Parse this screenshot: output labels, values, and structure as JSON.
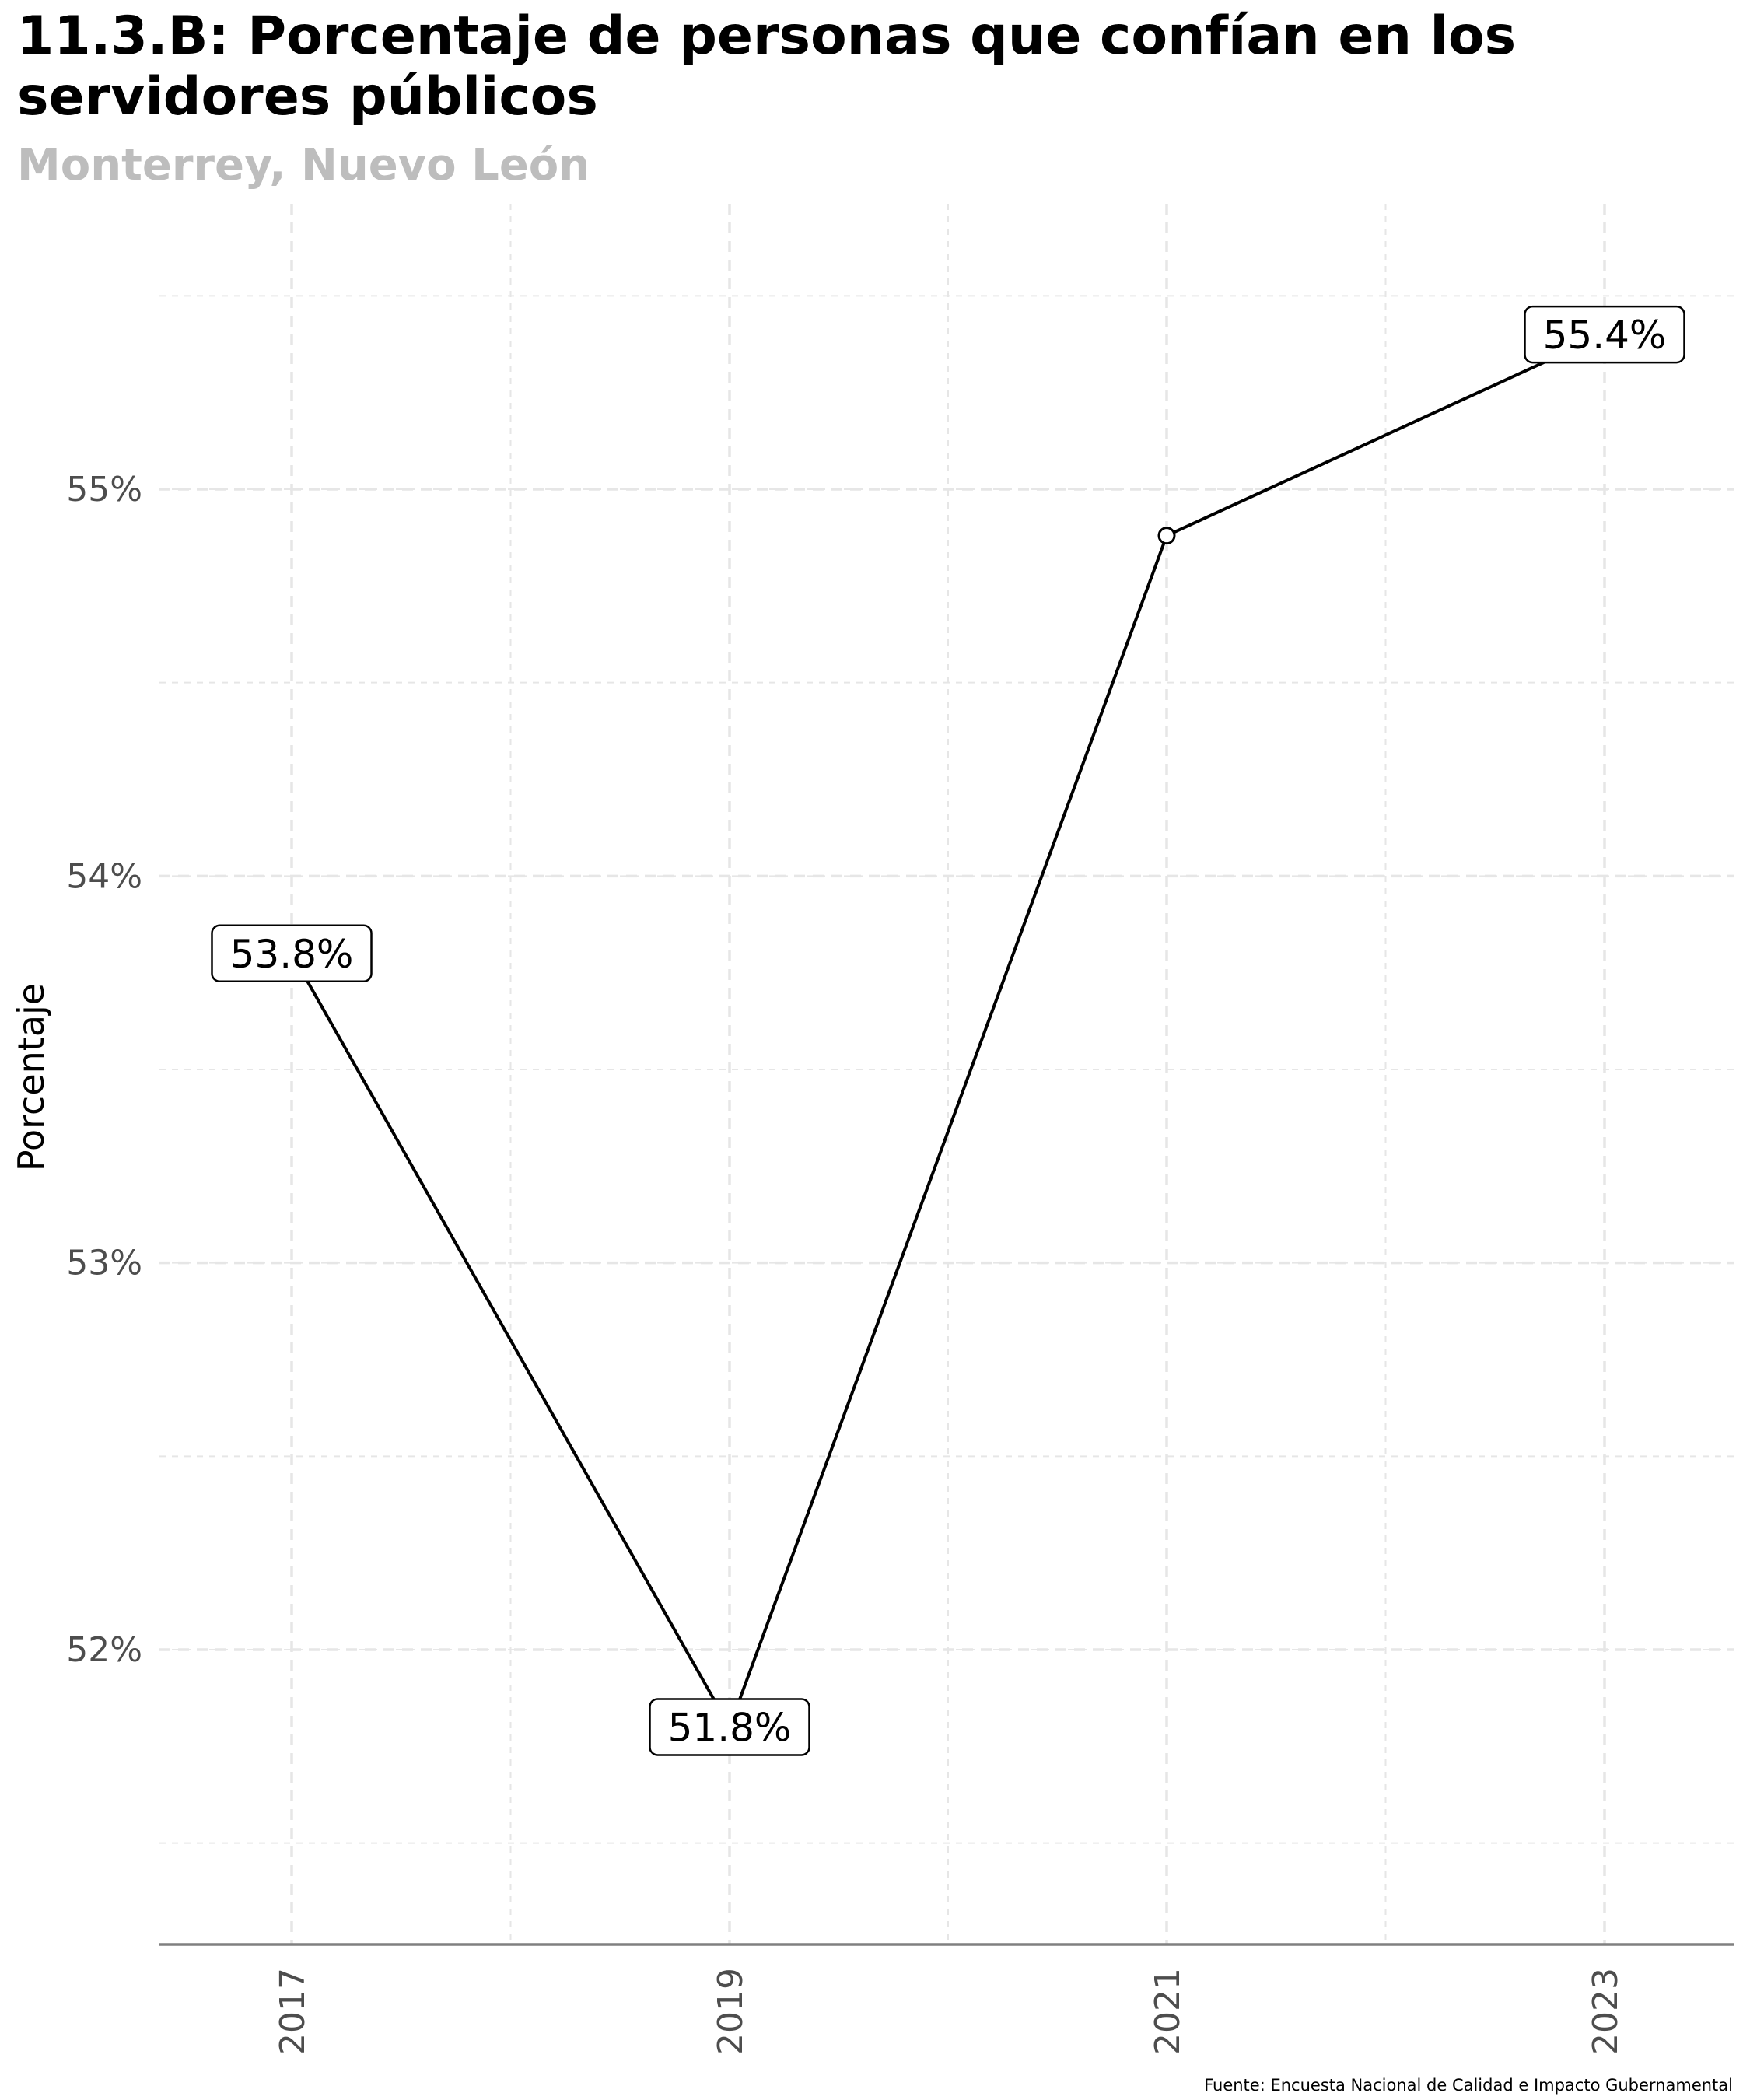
{
  "chart_data": {
    "type": "line",
    "title": "11.3.B: Porcentaje de personas que confían en los servidores públicos",
    "subtitle": "Monterrey, Nuevo León",
    "xlabel": "",
    "ylabel": "Porcentaje",
    "caption": "Fuente: Encuesta Nacional de Calidad e Impacto Gubernamental",
    "x": [
      "2017",
      "2019",
      "2021",
      "2023"
    ],
    "series": [
      {
        "values": [
          53.8,
          51.8,
          54.88,
          55.4
        ]
      }
    ],
    "data_labels": [
      "53.8%",
      "51.8%",
      null,
      "55.4%"
    ],
    "yticks": [
      52,
      53,
      54,
      55
    ],
    "ytick_labels": [
      "52%",
      "53%",
      "54%",
      "55%"
    ],
    "ylim": [
      51.25,
      55.75
    ],
    "grid": true,
    "grid_style": "dashed",
    "legend": "none",
    "colors": {
      "line": "#000000",
      "grid": "#e6e6e6",
      "axis": "#808080",
      "subtitle": "#bdbdbd"
    }
  }
}
